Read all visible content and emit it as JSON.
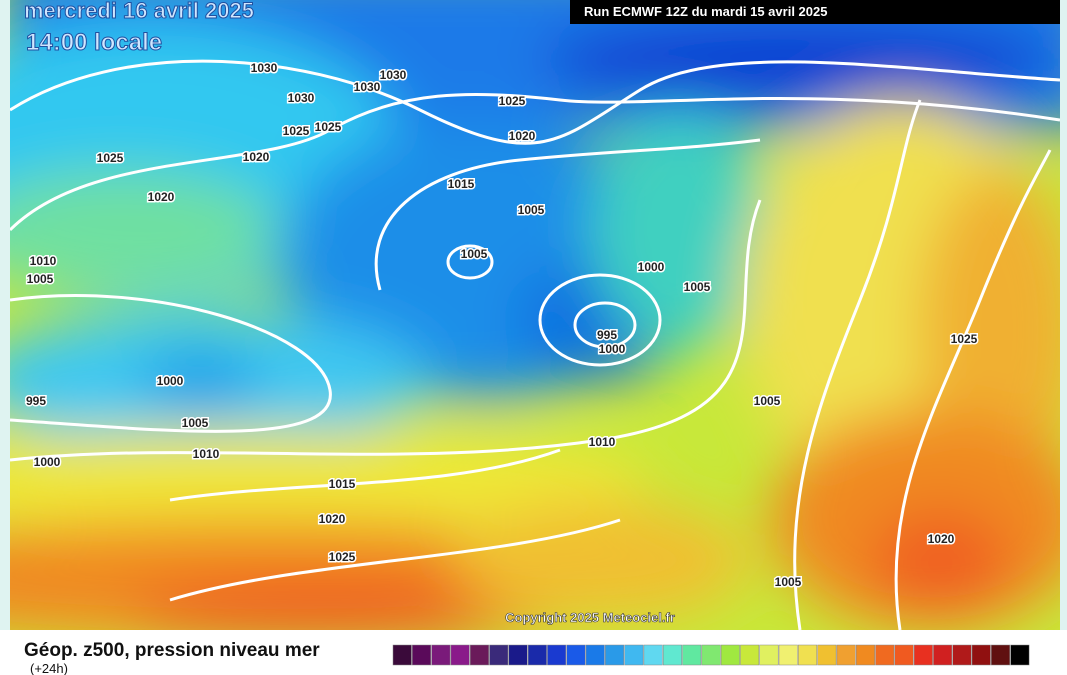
{
  "header": {
    "date": "mercredi 16 avril 2025",
    "time": "14:00 locale",
    "run": "Run ECMWF 12Z du mardi 15 avril 2025"
  },
  "isobar_labels": [
    "1030",
    "1030",
    "1030",
    "1030",
    "1025",
    "1025",
    "1025",
    "1020",
    "1020",
    "1010",
    "1005",
    "1025",
    "1020",
    "1015",
    "1005",
    "1005",
    "1000",
    "1005",
    "995",
    "1000",
    "1000",
    "995",
    "1005",
    "1010",
    "1000",
    "1015",
    "1020",
    "1025",
    "1010",
    "1005",
    "1025",
    "1020",
    "1005"
  ],
  "copyright": "Copyright 2025 Meteociel.fr",
  "legend": {
    "title": "Géop. z500, pression niveau mer",
    "step": "(+24h)"
  }
}
